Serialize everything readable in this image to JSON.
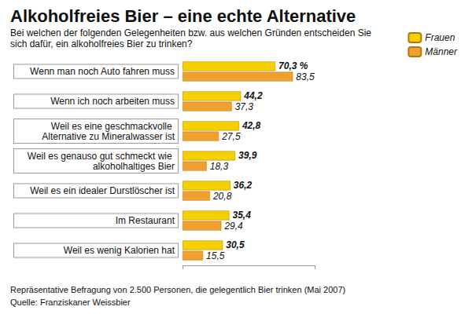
{
  "chart_data": {
    "type": "bar",
    "title": "Alkoholfreies Bier – eine echte Alternative",
    "subtitle": "Bei welchen der folgenden Gelegenheiten bzw. aus welchen Gründen entscheiden Sie sich dafür, ein alkoholfreies Bier zu trinken?",
    "categories": [
      "Wenn man noch Auto fahren muss",
      "Wenn ich noch arbeiten muss",
      "Weil es eine geschmackvolle Alternative zu Mineralwasser ist",
      "Weil es genauso gut schmeckt wie alkoholhaltiges Bier",
      "Weil es ein idealer Durstlöscher ist",
      "Im Restaurant",
      "Weil es wenig Kalorien hat"
    ],
    "series": [
      {
        "name": "Frauen",
        "color": "#f5d000",
        "values": [
          70.3,
          44.2,
          42.8,
          39.9,
          36.2,
          35.4,
          30.5
        ],
        "value_labels": [
          "70,3 %",
          "44,2",
          "42,8",
          "39,9",
          "36,2",
          "35,4",
          "30,5"
        ]
      },
      {
        "name": "Männer",
        "color": "#f0a030",
        "values": [
          83.5,
          37.3,
          27.5,
          18.3,
          20.8,
          29.4,
          15.5
        ],
        "value_labels": [
          "83,5",
          "37,3",
          "27,5",
          "18,3",
          "20,8",
          "29,4",
          "15,5"
        ]
      }
    ],
    "orientation": "horizontal",
    "xlim": [
      0,
      100
    ],
    "xticks": [
      0,
      100
    ],
    "grid": false,
    "data_labels": true,
    "tick_labels": "y",
    "legend": "top-right",
    "annotations": [
      "Repräsentative Befragung von 2.500 Personen, die gelegentlich Bier trinken (Mai 2007)",
      "Quelle: Franziskaner Weissbier"
    ]
  }
}
